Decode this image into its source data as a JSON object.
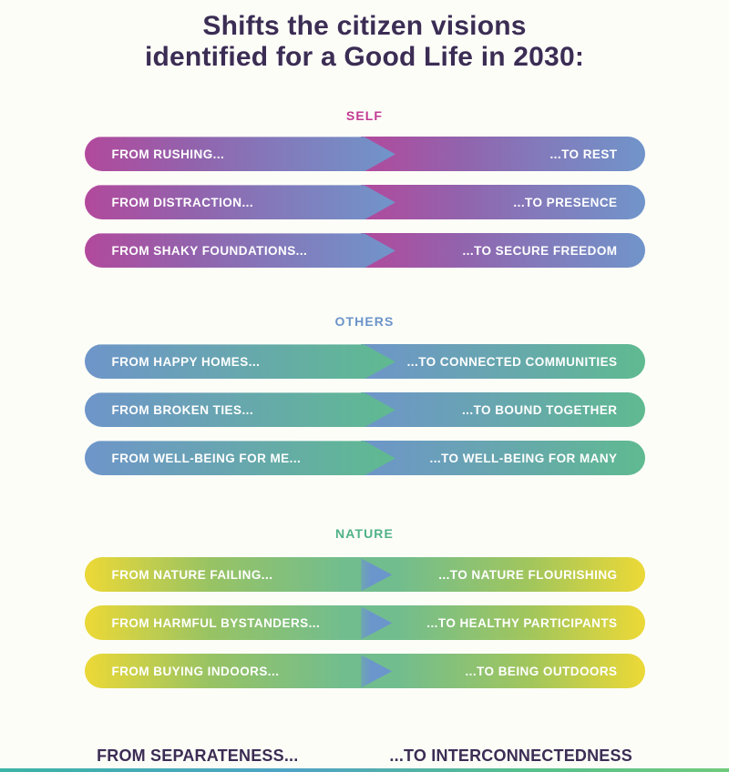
{
  "title": {
    "lines": [
      "Shifts the citizen visions",
      "identified for a Good Life in 2030:"
    ],
    "color": "#3b2d54"
  },
  "sections": [
    {
      "label": "SELF",
      "label_color": "#c23a92",
      "bar_gradient": {
        "from": "#b2499c",
        "to": "#7095ca"
      },
      "rows": [
        {
          "from": "FROM RUSHING...",
          "to": "...TO REST"
        },
        {
          "from": "FROM DISTRACTION...",
          "to": "...TO PRESENCE"
        },
        {
          "from": "FROM SHAKY FOUNDATIONS...",
          "to": "...TO SECURE FREEDOM"
        }
      ]
    },
    {
      "label": "OTHERS",
      "label_color": "#6b94c9",
      "bar_gradient": {
        "from": "#6e95c9",
        "to": "#5fba90"
      },
      "rows": [
        {
          "from": "FROM HAPPY HOMES...",
          "to": "...TO CONNECTED COMMUNITIES"
        },
        {
          "from": "FROM BROKEN TIES...",
          "to": "...TO BOUND TOGETHER"
        },
        {
          "from": "FROM WELL-BEING FOR ME...",
          "to": "...TO WELL-BEING FOR MANY"
        }
      ]
    },
    {
      "label": "NATURE",
      "label_color": "#4fb286",
      "bar_gradient": {
        "from": "#e9d838",
        "mid": "#72bd8e",
        "to": "#e9d838"
      },
      "arrow_color": "#6b96cb",
      "rows": [
        {
          "from": "FROM NATURE FAILING...",
          "to": "...TO NATURE FLOURISHING"
        },
        {
          "from": "FROM HARMFUL BYSTANDERS...",
          "to": "...TO HEALTHY PARTICIPANTS"
        },
        {
          "from": "FROM BUYING INDOORS...",
          "to": "...TO BEING OUTDOORS"
        }
      ]
    }
  ],
  "footer": {
    "from": "FROM SEPARATENESS...",
    "to": "...TO INTERCONNECTEDNESS",
    "color": "#3b2d54"
  },
  "bottom_strip_colors": [
    "#3cb4a6",
    "#4fa3c5",
    "#57bf8d",
    "#70ca7c"
  ]
}
